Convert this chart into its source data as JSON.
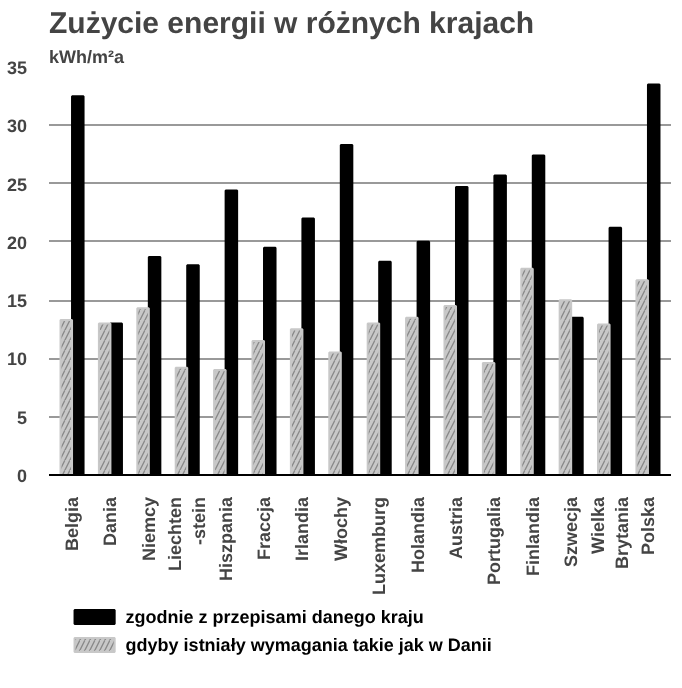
{
  "chart_data": {
    "type": "bar",
    "title": "Zużycie energii w różnych krajach",
    "ylabel": "kWh/m²a",
    "categories": [
      "Belgia",
      "Dania",
      "Niemcy",
      "Liechten\n-stein",
      "Hiszpania",
      "Fraccja",
      "Irlandia",
      "Włochy",
      "Luxemburg",
      "Holandia",
      "Austria",
      "Portugalia",
      "Finlandia",
      "Szwecja",
      "Wielka\nBrytania",
      "Polska"
    ],
    "series": [
      {
        "name": "zgodnie z przepisami danego kraju",
        "color": "#000000",
        "values": [
          32.5,
          13,
          18.7,
          18,
          24.4,
          19.5,
          22,
          28.3,
          18.3,
          20,
          24.7,
          25.7,
          27.4,
          13.5,
          21.2,
          33.5
        ]
      },
      {
        "name": "gdyby istniały wymagania takie jak w Danii",
        "color": "#c8c8c8",
        "values": [
          13.3,
          13,
          14.3,
          9.2,
          9,
          11.5,
          12.5,
          10.5,
          13,
          13.5,
          14.5,
          9.6,
          17.7,
          15,
          12.9,
          16.7
        ]
      }
    ],
    "ylim": [
      0,
      35
    ],
    "yticks": [
      0,
      5,
      10,
      15,
      20,
      25,
      30,
      35
    ],
    "grid": "y",
    "legend": "bottom"
  }
}
